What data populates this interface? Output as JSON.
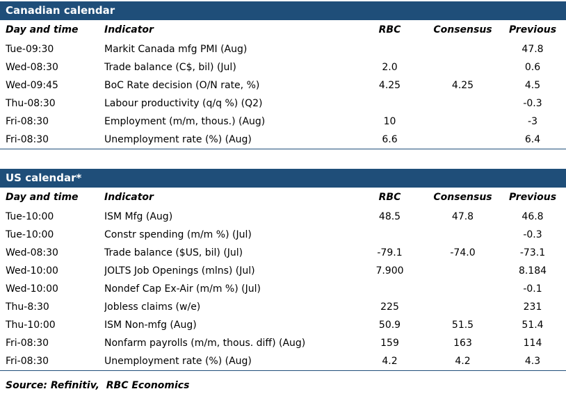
{
  "accent_color": "#1F4E79",
  "canadian": {
    "title": "Canadian calendar",
    "columns": [
      "Day and time",
      "Indicator",
      "RBC",
      "Consensus",
      "Previous"
    ],
    "rows": [
      [
        "Tue-09:30",
        "Markit Canada mfg PMI (Aug)",
        "",
        "",
        "47.8"
      ],
      [
        "Wed-08:30",
        "Trade balance (C$, bil) (Jul)",
        "2.0",
        "",
        "0.6"
      ],
      [
        "Wed-09:45",
        "BoC Rate decision (O/N rate, %)",
        "4.25",
        "4.25",
        "4.5"
      ],
      [
        "Thu-08:30",
        "Labour productivity (q/q %) (Q2)",
        "",
        "",
        "-0.3"
      ],
      [
        "Fri-08:30",
        "Employment (m/m, thous.) (Aug)",
        "10",
        "",
        "-3"
      ],
      [
        "Fri-08:30",
        "Unemployment rate (%) (Aug)",
        "6.6",
        "",
        "6.4"
      ]
    ]
  },
  "us": {
    "title": "US calendar*",
    "columns": [
      "Day and time",
      "Indicator",
      "RBC",
      "Consensus",
      "Previous"
    ],
    "rows": [
      [
        "Tue-10:00",
        "ISM Mfg (Aug)",
        "48.5",
        "47.8",
        "46.8"
      ],
      [
        "Tue-10:00",
        "Constr spending (m/m %) (Jul)",
        "",
        "",
        "-0.3"
      ],
      [
        "Wed-08:30",
        "Trade balance ($US, bil) (Jul)",
        "-79.1",
        "-74.0",
        "-73.1"
      ],
      [
        "Wed-10:00",
        "JOLTS Job Openings (mlns) (Jul)",
        "7.900",
        "",
        "8.184"
      ],
      [
        "Wed-10:00",
        "Nondef Cap Ex-Air (m/m %) (Jul)",
        "",
        "",
        "-0.1"
      ],
      [
        "Thu-8:30",
        "Jobless claims (w/e)",
        "225",
        "",
        "231"
      ],
      [
        "Thu-10:00",
        "ISM Non-mfg (Aug)",
        "50.9",
        "51.5",
        "51.4"
      ],
      [
        "Fri-08:30",
        "Nonfarm payrolls (m/m, thous. diff) (Aug)",
        "159",
        "163",
        "114"
      ],
      [
        "Fri-08:30",
        "Unemployment rate (%) (Aug)",
        "4.2",
        "4.2",
        "4.3"
      ]
    ]
  },
  "footer": {
    "source": "Source: Refinitiv,  RBC Economics"
  }
}
